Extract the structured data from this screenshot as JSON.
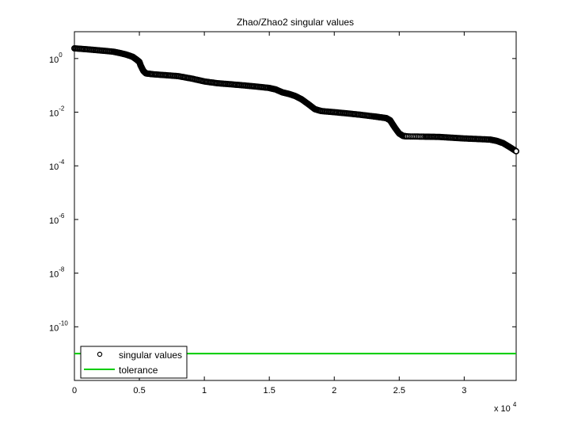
{
  "chart_data": {
    "type": "scatter",
    "title": "Zhao/Zhao2 singular values",
    "xlabel": "",
    "ylabel": "",
    "x_multiplier_label": "x 10",
    "x_multiplier_exponent": "4",
    "xlim": [
      0,
      34000
    ],
    "ylim": [
      1e-12,
      10.0
    ],
    "yscale": "log",
    "grid": false,
    "legend_position": "bottom-left",
    "x_ticks": [
      {
        "value": 0,
        "label": "0"
      },
      {
        "value": 5000,
        "label": "0.5"
      },
      {
        "value": 10000,
        "label": "1"
      },
      {
        "value": 15000,
        "label": "1.5"
      },
      {
        "value": 20000,
        "label": "2"
      },
      {
        "value": 25000,
        "label": "2.5"
      },
      {
        "value": 30000,
        "label": "3"
      }
    ],
    "y_ticks": [
      {
        "value": 1,
        "base": "10",
        "exp": "0"
      },
      {
        "value": 0.01,
        "base": "10",
        "exp": "-2"
      },
      {
        "value": 0.0001,
        "base": "10",
        "exp": "-4"
      },
      {
        "value": 1e-06,
        "base": "10",
        "exp": "-6"
      },
      {
        "value": 1e-08,
        "base": "10",
        "exp": "-8"
      },
      {
        "value": 1e-10,
        "base": "10",
        "exp": "-10"
      }
    ],
    "series": [
      {
        "name": "singular values",
        "marker": "circle",
        "color": "#000000",
        "points": [
          [
            0,
            2.4
          ],
          [
            1000,
            2.2
          ],
          [
            2000,
            2.0
          ],
          [
            3000,
            1.8
          ],
          [
            3500,
            1.6
          ],
          [
            4000,
            1.4
          ],
          [
            4500,
            1.15
          ],
          [
            4800,
            0.9
          ],
          [
            5000,
            0.75
          ],
          [
            5100,
            0.55
          ],
          [
            5300,
            0.35
          ],
          [
            5500,
            0.28
          ],
          [
            6000,
            0.26
          ],
          [
            7000,
            0.24
          ],
          [
            8000,
            0.22
          ],
          [
            9000,
            0.18
          ],
          [
            10000,
            0.14
          ],
          [
            11000,
            0.12
          ],
          [
            12000,
            0.11
          ],
          [
            13000,
            0.1
          ],
          [
            14000,
            0.09
          ],
          [
            15000,
            0.08
          ],
          [
            15500,
            0.07
          ],
          [
            16000,
            0.055
          ],
          [
            16500,
            0.048
          ],
          [
            17000,
            0.04
          ],
          [
            17500,
            0.03
          ],
          [
            18000,
            0.02
          ],
          [
            18500,
            0.013
          ],
          [
            19000,
            0.011
          ],
          [
            20000,
            0.01
          ],
          [
            21000,
            0.009
          ],
          [
            22000,
            0.008
          ],
          [
            23000,
            0.007
          ],
          [
            23500,
            0.0065
          ],
          [
            24000,
            0.006
          ],
          [
            24300,
            0.005
          ],
          [
            24500,
            0.0035
          ],
          [
            24700,
            0.0025
          ],
          [
            25000,
            0.0016
          ],
          [
            25300,
            0.0013
          ],
          [
            25600,
            0.00125
          ],
          [
            27000,
            0.00122
          ],
          [
            28000,
            0.0012
          ],
          [
            29000,
            0.00112
          ],
          [
            30000,
            0.00105
          ],
          [
            31000,
            0.001
          ],
          [
            32000,
            0.00095
          ],
          [
            32500,
            0.00085
          ],
          [
            33000,
            0.0007
          ],
          [
            33500,
            0.0005
          ],
          [
            34000,
            0.00035
          ]
        ]
      },
      {
        "name": "tolerance",
        "marker": "line",
        "color": "#00cc00",
        "value": 1e-11
      }
    ]
  }
}
